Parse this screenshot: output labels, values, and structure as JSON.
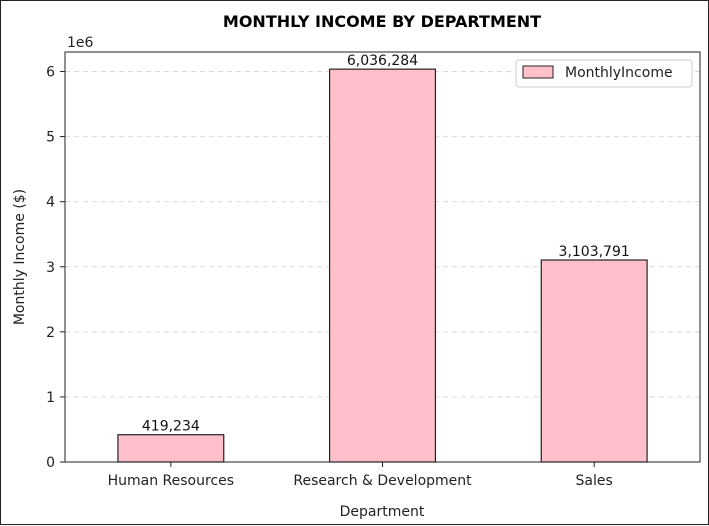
{
  "chart_data": {
    "type": "bar",
    "title": "MONTHLY INCOME BY DEPARTMENT",
    "xlabel": "Department",
    "ylabel": "Monthly Income ($)",
    "y_offset_text": "1e6",
    "categories": [
      "Human Resources",
      "Research & Development",
      "Sales"
    ],
    "series": [
      {
        "name": "MonthlyIncome",
        "values": [
          419234,
          6036284,
          3103791
        ]
      }
    ],
    "value_labels": [
      "419,234",
      "6,036,284",
      "3,103,791"
    ],
    "yticks": [
      0,
      1,
      2,
      3,
      4,
      5,
      6
    ],
    "ylim": [
      0,
      6300000
    ],
    "grid": "y-dashed",
    "legend_position": "top-right",
    "colors": {
      "bar_fill": "#ffc0cb",
      "bar_edge": "#222222"
    }
  }
}
